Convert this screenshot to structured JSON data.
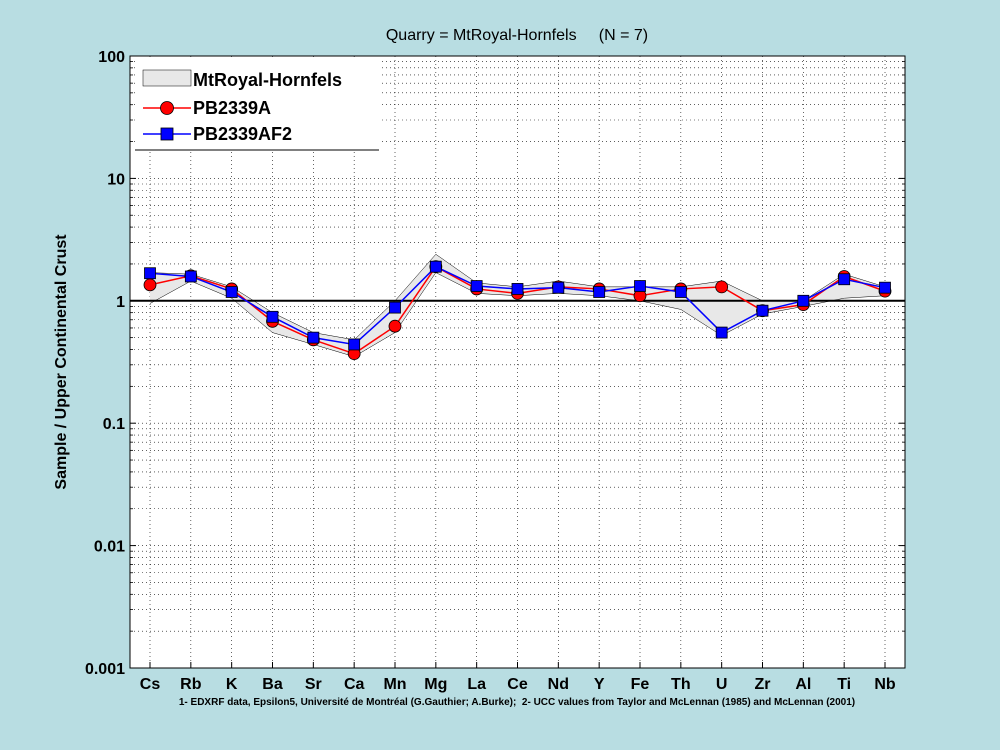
{
  "chart_data": {
    "type": "line",
    "title": "Quarry = MtRoyal-Hornfels     (N = 7)",
    "ylabel": "Sample / Upper Continental Crust",
    "xlabel": "",
    "yscale": "log",
    "ylim": [
      0.001,
      100
    ],
    "y_ticks": [
      "0.001",
      "0.01",
      "0.1",
      "1",
      "10",
      "100"
    ],
    "grid": "dotted",
    "legend_position": "top-left",
    "reference_line": 1,
    "categories": [
      "Cs",
      "Rb",
      "K",
      "Ba",
      "Sr",
      "Ca",
      "Mn",
      "Mg",
      "La",
      "Ce",
      "Nd",
      "Y",
      "Fe",
      "Th",
      "U",
      "Zr",
      "Al",
      "Ti",
      "Nb"
    ],
    "range": {
      "name": "MtRoyal-Hornfels",
      "upper": [
        1.7,
        1.65,
        1.3,
        0.8,
        0.55,
        0.48,
        1.0,
        2.4,
        1.4,
        1.3,
        1.45,
        1.3,
        1.3,
        1.3,
        1.45,
        1.0,
        1.0,
        1.65,
        1.3
      ],
      "lower": [
        0.95,
        1.45,
        1.05,
        0.55,
        0.44,
        0.35,
        0.55,
        1.7,
        1.15,
        1.1,
        1.15,
        1.1,
        1.0,
        0.85,
        0.52,
        0.78,
        0.9,
        1.05,
        1.1
      ],
      "color": "#e8e8e8"
    },
    "series": [
      {
        "name": "PB2339A",
        "values": [
          1.35,
          1.6,
          1.25,
          0.68,
          0.48,
          0.37,
          0.62,
          1.9,
          1.25,
          1.15,
          1.3,
          1.25,
          1.1,
          1.25,
          1.3,
          0.83,
          0.93,
          1.58,
          1.2
        ],
        "color": "#ff0000",
        "marker": "circle"
      },
      {
        "name": "PB2339AF2",
        "values": [
          1.68,
          1.58,
          1.18,
          0.74,
          0.5,
          0.44,
          0.88,
          1.9,
          1.32,
          1.25,
          1.28,
          1.18,
          1.32,
          1.18,
          0.55,
          0.83,
          1.0,
          1.5,
          1.28
        ],
        "color": "#0000ff",
        "marker": "square"
      }
    ],
    "footnote": "1- EDXRF data, Epsilon5, Université de Montréal (G.Gauthier; A.Burke);  2- UCC values from Taylor and McLennan (1985) and McLennan (2001)"
  }
}
